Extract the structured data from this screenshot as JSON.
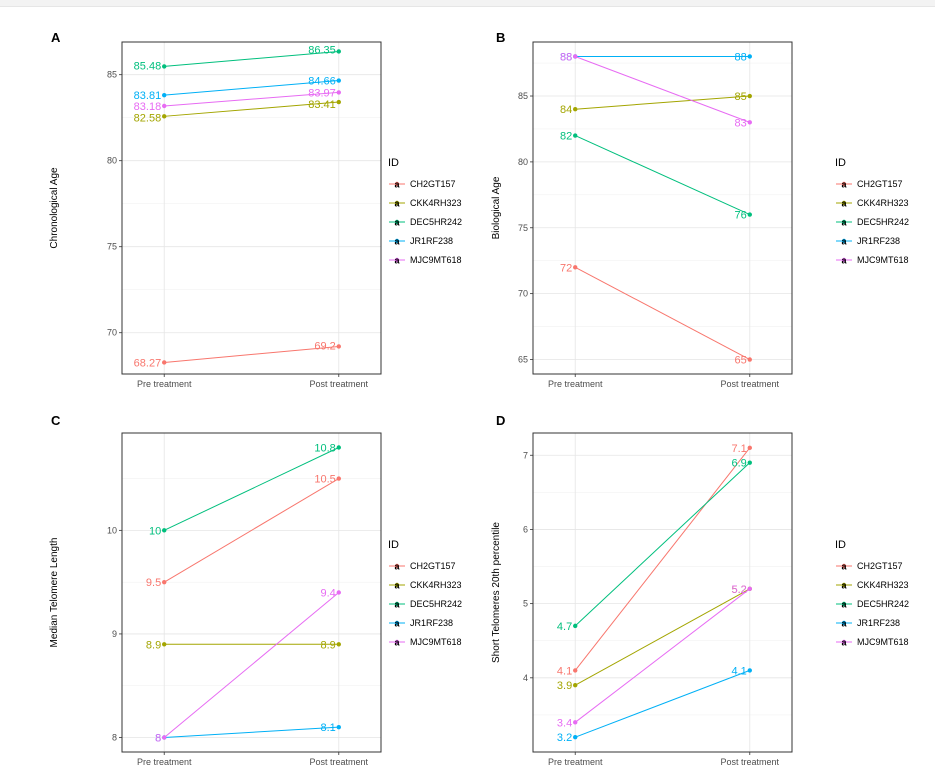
{
  "colors": {
    "CH2GT157": "#F8766D",
    "CKK4RH323": "#A3A500",
    "DEC5HR242": "#00BF7D",
    "JR1RF238": "#00B0F6",
    "MJC9MT618": "#E76BF3"
  },
  "legend": {
    "title": "ID",
    "entries": [
      "CH2GT157",
      "CKK4RH323",
      "DEC5HR242",
      "JR1RF238",
      "MJC9MT618"
    ]
  },
  "chart_data": [
    {
      "panel": "A",
      "type": "line",
      "ylabel": "Chronological Age",
      "categories": [
        "Pre treatment",
        "Post treatment"
      ],
      "ylim": [
        67.6,
        86.9
      ],
      "yticks": [
        70,
        75,
        80,
        85
      ],
      "grid": true,
      "legend_position": "right",
      "series": [
        {
          "name": "CH2GT157",
          "values": [
            68.27,
            69.2
          ],
          "labels": [
            "68.27",
            "69.2"
          ]
        },
        {
          "name": "CKK4RH323",
          "values": [
            82.58,
            83.41
          ],
          "labels": [
            "82.58",
            "83.41"
          ]
        },
        {
          "name": "DEC5HR242",
          "values": [
            85.48,
            86.35
          ],
          "labels": [
            "85.48",
            "86.35"
          ]
        },
        {
          "name": "JR1RF238",
          "values": [
            83.81,
            84.66
          ],
          "labels": [
            "83.81",
            "84.66"
          ]
        },
        {
          "name": "MJC9MT618",
          "values": [
            83.18,
            83.97
          ],
          "labels": [
            "83.18",
            "83.97"
          ]
        }
      ]
    },
    {
      "panel": "B",
      "type": "line",
      "ylabel": "Biological Age",
      "categories": [
        "Pre treatment",
        "Post treatment"
      ],
      "ylim": [
        63.9,
        89.1
      ],
      "yticks": [
        65,
        70,
        75,
        80,
        85
      ],
      "grid": true,
      "legend_position": "right",
      "series": [
        {
          "name": "CH2GT157",
          "values": [
            72,
            65
          ],
          "labels": [
            "72",
            "65"
          ]
        },
        {
          "name": "CKK4RH323",
          "values": [
            84,
            85
          ],
          "labels": [
            "84",
            "85"
          ]
        },
        {
          "name": "DEC5HR242",
          "values": [
            82,
            76
          ],
          "labels": [
            "82",
            "76"
          ]
        },
        {
          "name": "JR1RF238",
          "values": [
            88,
            88
          ],
          "labels": [
            "88",
            "88"
          ]
        },
        {
          "name": "MJC9MT618",
          "values": [
            88,
            83
          ],
          "labels": [
            "88",
            "83"
          ]
        }
      ]
    },
    {
      "panel": "C",
      "type": "line",
      "ylabel": "Median Telomere Length",
      "categories": [
        "Pre treatment",
        "Post treatment"
      ],
      "ylim": [
        7.86,
        10.94
      ],
      "yticks": [
        8,
        9,
        10
      ],
      "grid": true,
      "legend_position": "right",
      "series": [
        {
          "name": "CH2GT157",
          "values": [
            9.5,
            10.5
          ],
          "labels": [
            "9.5",
            "10.5"
          ]
        },
        {
          "name": "CKK4RH323",
          "values": [
            8.9,
            8.9
          ],
          "labels": [
            "8.9",
            "8.9"
          ]
        },
        {
          "name": "DEC5HR242",
          "values": [
            10,
            10.8
          ],
          "labels": [
            "10",
            "10.8"
          ]
        },
        {
          "name": "JR1RF238",
          "values": [
            8,
            8.1
          ],
          "labels": [
            "8",
            "8.1"
          ]
        },
        {
          "name": "MJC9MT618",
          "values": [
            8,
            9.4
          ],
          "labels": [
            "8",
            "9.4"
          ]
        }
      ]
    },
    {
      "panel": "D",
      "type": "line",
      "ylabel": "Short Telomeres 20th percentile",
      "categories": [
        "Pre treatment",
        "Post treatment"
      ],
      "ylim": [
        3.0,
        7.3
      ],
      "yticks": [
        4,
        5,
        6,
        7
      ],
      "grid": true,
      "legend_position": "right",
      "series": [
        {
          "name": "CH2GT157",
          "values": [
            4.1,
            7.1
          ],
          "labels": [
            "4.1",
            "7.1"
          ]
        },
        {
          "name": "CKK4RH323",
          "values": [
            3.9,
            5.2
          ],
          "labels": [
            "3.9",
            "5.2"
          ]
        },
        {
          "name": "DEC5HR242",
          "values": [
            4.7,
            6.9
          ],
          "labels": [
            "4.7",
            "6.9"
          ]
        },
        {
          "name": "JR1RF238",
          "values": [
            3.2,
            4.1
          ],
          "labels": [
            "3.2",
            "4.1"
          ]
        },
        {
          "name": "MJC9MT618",
          "values": [
            3.4,
            5.2
          ],
          "labels": [
            "3.4",
            "5.2"
          ]
        }
      ]
    }
  ]
}
